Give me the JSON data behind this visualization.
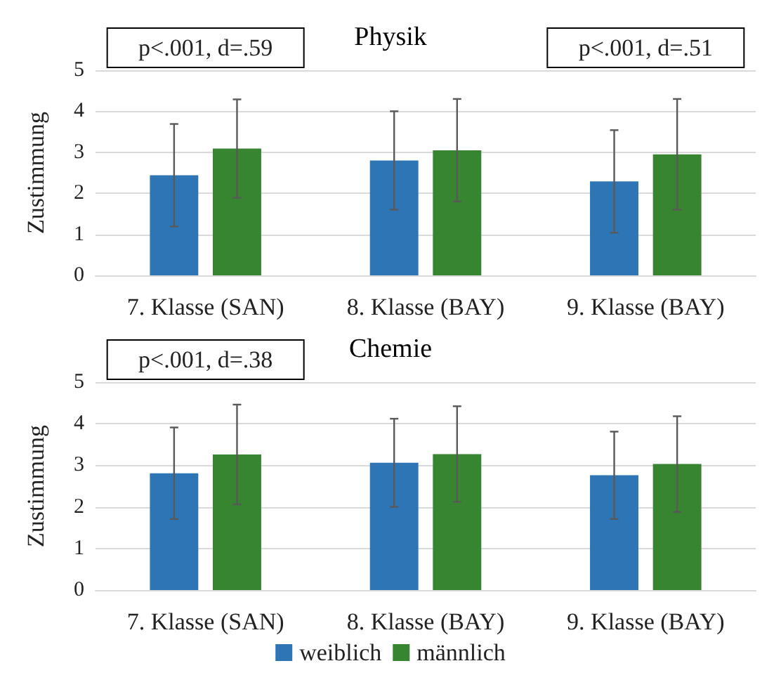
{
  "chart_data": [
    {
      "type": "bar",
      "title": "Physik",
      "ylabel": "Zustimmung",
      "categories": [
        "7. Klasse (SAN)",
        "8. Klasse (BAY)",
        "9. Klasse (BAY)"
      ],
      "ylim": [
        0,
        5
      ],
      "yticks": [
        0,
        1,
        2,
        3,
        4,
        5
      ],
      "grid": "y",
      "legend": false,
      "series": [
        {
          "color": "#2e75b6",
          "values": [
            2.44,
            2.8,
            2.29
          ],
          "errors": [
            1.25,
            1.2,
            1.25
          ]
        },
        {
          "color": "#378431",
          "values": [
            3.09,
            3.05,
            2.95
          ],
          "errors": [
            1.2,
            1.25,
            1.35
          ]
        }
      ],
      "annotations": [
        "p<.001, d=.59",
        "p<.001, d=.51"
      ]
    },
    {
      "type": "bar",
      "title": "Chemie",
      "ylabel": "Zustimmung",
      "categories": [
        "7. Klasse (SAN)",
        "8. Klasse (BAY)",
        "9. Klasse (BAY)"
      ],
      "ylim": [
        0,
        5
      ],
      "yticks": [
        0,
        1,
        2,
        3,
        4,
        5
      ],
      "grid": "y",
      "legend": "bottom",
      "series": [
        {
          "name": "weiblich",
          "color": "#2e75b6",
          "values": [
            2.81,
            3.06,
            2.76
          ],
          "errors": [
            1.1,
            1.06,
            1.05
          ]
        },
        {
          "name": "männlich",
          "color": "#378431",
          "values": [
            3.26,
            3.27,
            3.03
          ],
          "errors": [
            1.2,
            1.15,
            1.15
          ]
        }
      ],
      "annotations": [
        "p<.001, d=.38"
      ]
    }
  ]
}
